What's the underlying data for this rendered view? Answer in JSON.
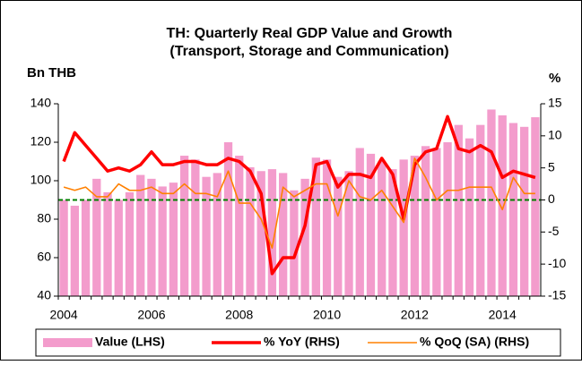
{
  "chart_data": {
    "type": "bar_line",
    "title": "TH: Quarterly Real GDP Value and Growth",
    "subtitle": "(Transport, Storage and Communication)",
    "y_label": "Bn THB",
    "y2_label": "%",
    "categories": [
      "2004",
      null,
      null,
      null,
      null,
      null,
      null,
      null,
      "2006",
      null,
      null,
      null,
      null,
      null,
      null,
      null,
      "2008",
      null,
      null,
      null,
      null,
      null,
      null,
      null,
      "2010",
      null,
      null,
      null,
      null,
      null,
      null,
      null,
      "2012",
      null,
      null,
      null,
      null,
      null,
      null,
      null,
      "2014",
      null,
      null,
      null
    ],
    "series": [
      {
        "name": "Value (LHS)",
        "kind": "bar",
        "color": "#f39ccc",
        "values": [
          90,
          87,
          90,
          101,
          94,
          90,
          94,
          103,
          101,
          97,
          99,
          113,
          111,
          102,
          104,
          120,
          113,
          107,
          105,
          106,
          104,
          95,
          101,
          112,
          111,
          102,
          105,
          117,
          114,
          110,
          106,
          111,
          113,
          118,
          117,
          120,
          129,
          122,
          129,
          137,
          134,
          130,
          128,
          133
        ]
      },
      {
        "name": "% YoY (RHS)",
        "kind": "line",
        "axis": "y2",
        "color": "#ff0000",
        "values": [
          6,
          10.5,
          8.5,
          6.5,
          4.5,
          5,
          4.5,
          5.5,
          7.5,
          5.5,
          5.5,
          6,
          6,
          5.5,
          5.5,
          6.5,
          6,
          4.5,
          1,
          -11.5,
          -9,
          -9,
          -4,
          5.5,
          6,
          2,
          4,
          4,
          3.5,
          6.5,
          4,
          -3,
          5.5,
          7.5,
          8,
          13,
          8,
          7.5,
          8.5,
          7.5,
          3.5,
          4.5,
          4,
          3.5
        ]
      },
      {
        "name": "% QoQ (SA) (RHS)",
        "kind": "line",
        "axis": "y2",
        "color": "#ff8000",
        "values": [
          2,
          1.5,
          2,
          0.5,
          0.5,
          2.5,
          1.5,
          1.5,
          2,
          1,
          1,
          2.5,
          1,
          1,
          0.5,
          4.5,
          -0.5,
          -0.5,
          -3,
          -7.5,
          2,
          0.5,
          1.5,
          2.5,
          2.5,
          -2.5,
          3,
          0.5,
          0,
          1.5,
          -1,
          -3.5,
          6.5,
          3.5,
          0,
          1.5,
          1.5,
          2,
          2,
          2,
          -1.5,
          3.5,
          1,
          1
        ]
      }
    ],
    "ylim": [
      40,
      140
    ],
    "yticks": [
      40,
      60,
      80,
      100,
      120,
      140
    ],
    "y2lim": [
      -15,
      15
    ],
    "y2ticks": [
      -15,
      -10,
      -5,
      0,
      5,
      10,
      15
    ],
    "reference_line": {
      "value": 0,
      "axis": "y2",
      "color": "#008000"
    },
    "legend": "bottom"
  }
}
